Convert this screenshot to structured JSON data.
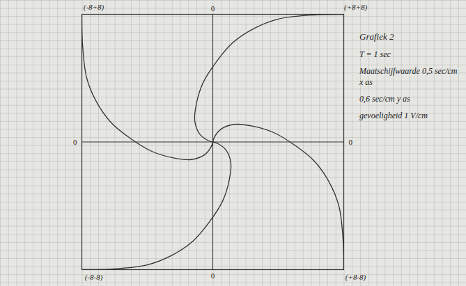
{
  "chart_data": {
    "type": "line",
    "xlim": [
      -8,
      8
    ],
    "ylim": [
      -8,
      8
    ],
    "xticks": [
      0
    ],
    "yticks": [
      0
    ],
    "grid": true,
    "color": "#333333",
    "series": [
      {
        "x": [
          8,
          6,
          4,
          2.5,
          1.2,
          0.2,
          -0.6,
          -1,
          -1.1,
          -0.8,
          -0.3,
          0
        ],
        "values": [
          8,
          7.95,
          7.7,
          7.1,
          6.2,
          5,
          3.7,
          2.4,
          1.3,
          0.5,
          0.1,
          0
        ]
      },
      {
        "x": [
          -8,
          -7.95,
          -7.7,
          -7.1,
          -6.2,
          -5,
          -3.7,
          -2.4,
          -1.3,
          -0.5,
          -0.1,
          0
        ],
        "values": [
          8,
          6,
          4,
          2.5,
          1.2,
          0.2,
          -0.6,
          -1,
          -1.1,
          -0.8,
          -0.3,
          0
        ]
      },
      {
        "x": [
          -8,
          -6,
          -4,
          -2.5,
          -1.2,
          -0.2,
          0.6,
          1,
          1.1,
          0.8,
          0.3,
          0
        ],
        "values": [
          -8,
          -7.95,
          -7.7,
          -7.1,
          -6.2,
          -5,
          -3.7,
          -2.4,
          -1.3,
          -0.5,
          -0.1,
          0
        ]
      },
      {
        "x": [
          8,
          7.95,
          7.7,
          7.1,
          6.2,
          5,
          3.7,
          2.4,
          1.3,
          0.5,
          0.1,
          0
        ],
        "values": [
          -8,
          -6,
          -4,
          -2.5,
          -1.2,
          -0.2,
          0.6,
          1,
          1.1,
          0.8,
          0.3,
          0
        ]
      }
    ],
    "annotations": [
      {
        "text": "(-8+8)",
        "x": -8,
        "y": 8
      },
      {
        "text": "(+8+8)",
        "x": 8,
        "y": 8
      },
      {
        "text": "(-8-8)",
        "x": -8,
        "y": -8
      },
      {
        "text": "(+8-8)",
        "x": 8,
        "y": -8
      }
    ],
    "notes": [
      "Grafiek 2",
      "T = 1 sec",
      "Maatschijfwaarde 0,5 sec/cm x as",
      "0,6 sec/cm y as",
      "gevoeligheid 1 V/cm"
    ]
  }
}
